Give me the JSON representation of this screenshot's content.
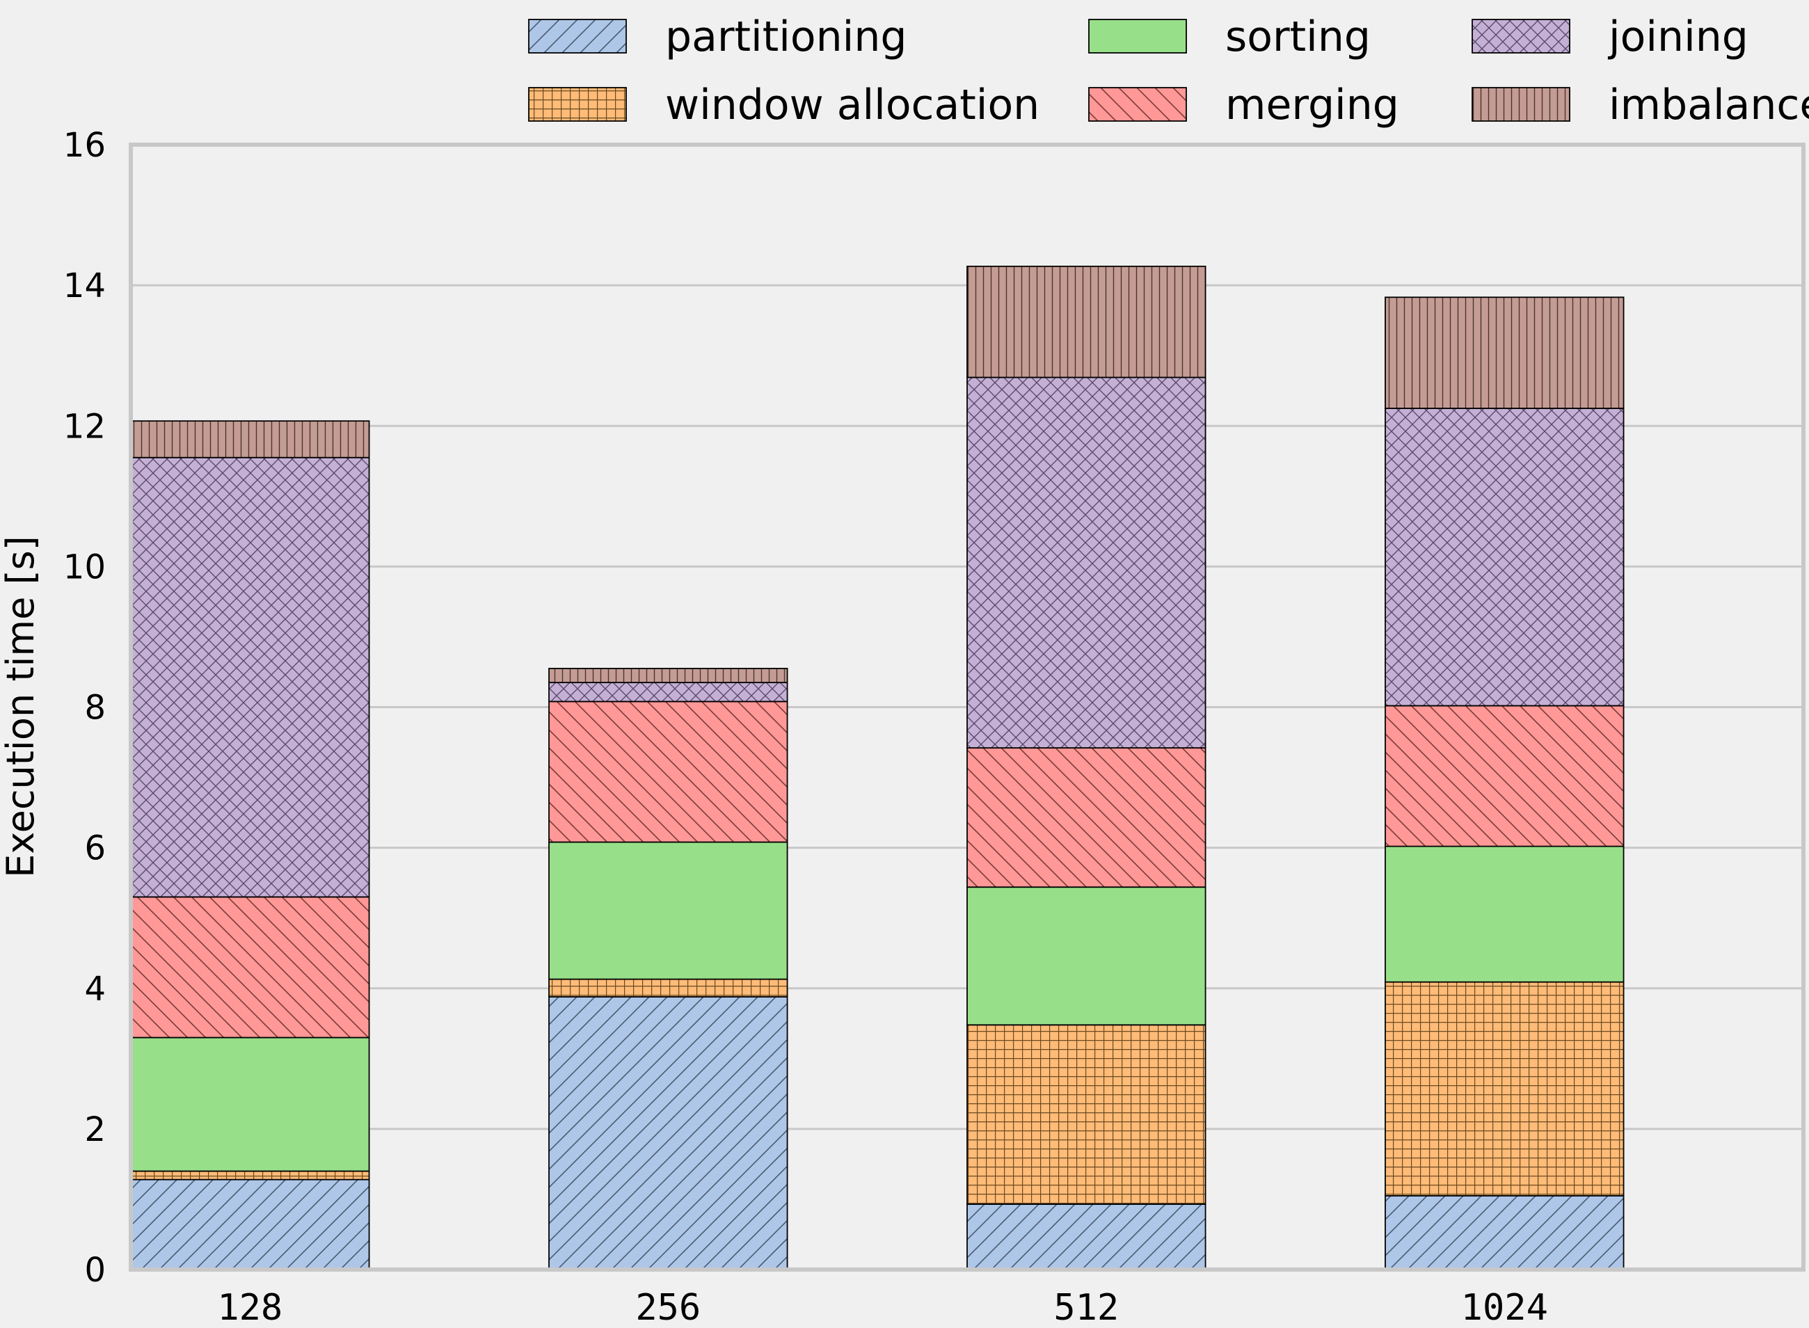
{
  "chart_data": {
    "type": "bar",
    "stacked": true,
    "categories": [
      "128",
      "256",
      "512",
      "1024"
    ],
    "ylabel": "Execution time [s]",
    "xlabel": "",
    "ylim": [
      0,
      16
    ],
    "yticks": [
      0,
      2,
      4,
      6,
      8,
      10,
      12,
      14,
      16
    ],
    "grid": true,
    "legend_position": "top",
    "series": [
      {
        "name": "partitioning",
        "color": "#aec7e8",
        "pattern": "diagonal-hatch",
        "values": [
          1.28,
          3.88,
          0.93,
          1.05
        ]
      },
      {
        "name": "window allocation",
        "color": "#ffbb78",
        "pattern": "grid",
        "values": [
          0.12,
          0.25,
          2.55,
          3.04
        ]
      },
      {
        "name": "sorting",
        "color": "#98df8a",
        "pattern": "solid",
        "values": [
          1.9,
          1.95,
          1.96,
          1.93
        ]
      },
      {
        "name": "merging",
        "color": "#ff9896",
        "pattern": "back-diagonal-hatch",
        "values": [
          2.0,
          2.0,
          1.98,
          2.0
        ]
      },
      {
        "name": "joining",
        "color": "#c5b0d5",
        "pattern": "crosshatch",
        "values": [
          6.25,
          0.27,
          5.27,
          4.23
        ]
      },
      {
        "name": "imbalance",
        "color": "#c49c94",
        "pattern": "vertical-lines",
        "values": [
          0.52,
          0.2,
          1.58,
          1.58
        ]
      }
    ]
  }
}
